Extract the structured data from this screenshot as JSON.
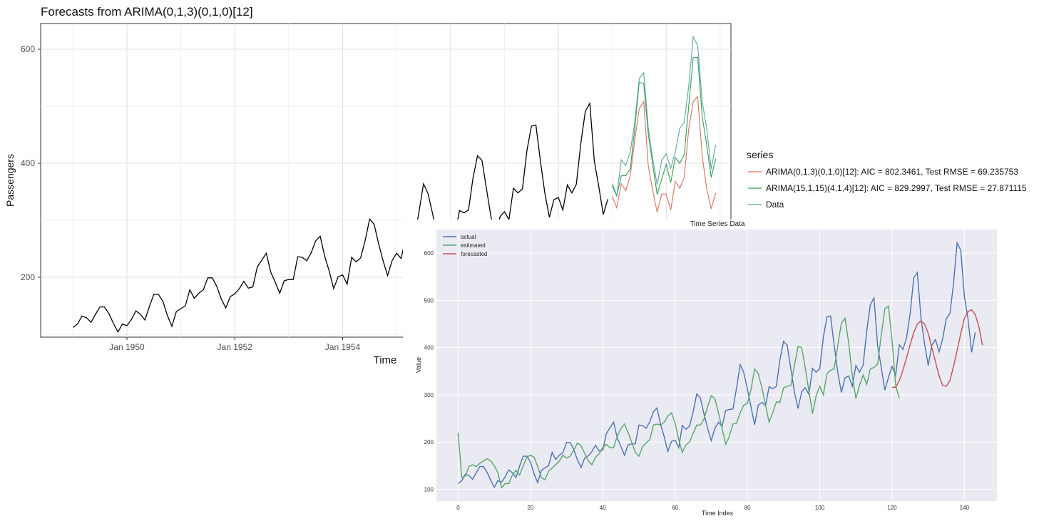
{
  "chart_data": [
    {
      "type": "line",
      "title": "Forecasts from ARIMA(0,1,3)(0,1,0)[12]",
      "xlabel": "Time",
      "ylabel": "Passengers",
      "x_ticks": [
        {
          "label": "Jan 1950",
          "value": 1950.0
        },
        {
          "label": "Jan 1952",
          "value": 1952.0
        },
        {
          "label": "Jan 1954",
          "value": 1954.0
        }
      ],
      "y_ticks": [
        200,
        400,
        600
      ],
      "xlim": [
        1948.4,
        1961.2
      ],
      "ylim": [
        95,
        645
      ],
      "grid": true,
      "legend_position": "right",
      "legend_title": "series",
      "history": {
        "start": 1949.0,
        "step": 0.0833333,
        "values": [
          112,
          118,
          132,
          129,
          121,
          135,
          148,
          148,
          136,
          119,
          104,
          118,
          115,
          126,
          141,
          135,
          125,
          149,
          170,
          170,
          158,
          133,
          114,
          140,
          145,
          150,
          178,
          163,
          172,
          178,
          199,
          199,
          184,
          162,
          146,
          166,
          171,
          180,
          193,
          181,
          183,
          218,
          230,
          242,
          209,
          191,
          172,
          194,
          196,
          196,
          236,
          235,
          229,
          243,
          264,
          272,
          237,
          211,
          180,
          201,
          204,
          188,
          235,
          227,
          234,
          264,
          302,
          293,
          259,
          229,
          203,
          229,
          242,
          233,
          267,
          269,
          270,
          315,
          364,
          347,
          312,
          274,
          237,
          278,
          284,
          277,
          317,
          313,
          318,
          374,
          413,
          405,
          355,
          306,
          271,
          306,
          315,
          301,
          356,
          348,
          355,
          422,
          465,
          467,
          404,
          347,
          305,
          336,
          340,
          318,
          362,
          348,
          363,
          435,
          491,
          505,
          404,
          359,
          310,
          337
        ]
      },
      "series": [
        {
          "name": "ARIMA(0,1,3)(0,1,0)[12]: AIC = 802.3461, Test RMSE = 69.235753",
          "color": "#d9705f",
          "start": 1959.0,
          "step": 0.0833333,
          "values": [
            342,
            322,
            364,
            352,
            378,
            440,
            496,
            508,
            396,
            352,
            314,
            346,
            346,
            318,
            368,
            356,
            375,
            460,
            508,
            517,
            413,
            355,
            320,
            348
          ]
        },
        {
          "name": "ARIMA(15,1,15)(4,1,4)[12]: AIC = 829.2997, Test RMSE = 27.871115",
          "color": "#2e9e50",
          "start": 1959.0,
          "step": 0.0833333,
          "values": [
            364,
            343,
            378,
            378,
            390,
            460,
            542,
            540,
            452,
            398,
            345,
            372,
            398,
            366,
            410,
            400,
            415,
            500,
            585,
            586,
            482,
            432,
            375,
            408
          ]
        },
        {
          "name": "Data",
          "color": "#5ea4a6",
          "start": 1959.0,
          "step": 0.0833333,
          "values": [
            360,
            342,
            406,
            396,
            420,
            472,
            548,
            559,
            463,
            407,
            362,
            405,
            417,
            391,
            419,
            461,
            472,
            535,
            622,
            606,
            508,
            461,
            390,
            432
          ]
        }
      ]
    },
    {
      "type": "line",
      "title": "Time Series Data",
      "xlabel": "Time Index",
      "ylabel": "Value",
      "x_ticks": [
        0,
        20,
        40,
        60,
        80,
        100,
        120,
        140
      ],
      "y_ticks": [
        100,
        200,
        300,
        400,
        500,
        600
      ],
      "xlim": [
        -6,
        149
      ],
      "ylim": [
        75,
        650
      ],
      "grid": true,
      "legend_position": "top-left",
      "series": [
        {
          "name": "actual",
          "color": "#4c72b0",
          "start": 0,
          "values": [
            112,
            118,
            132,
            129,
            121,
            135,
            148,
            148,
            136,
            119,
            104,
            118,
            115,
            126,
            141,
            135,
            125,
            149,
            170,
            170,
            158,
            133,
            114,
            140,
            145,
            150,
            178,
            163,
            172,
            178,
            199,
            199,
            184,
            162,
            146,
            166,
            171,
            180,
            193,
            181,
            183,
            218,
            230,
            242,
            209,
            191,
            172,
            194,
            196,
            196,
            236,
            235,
            229,
            243,
            264,
            272,
            237,
            211,
            180,
            201,
            204,
            188,
            235,
            227,
            234,
            264,
            302,
            293,
            259,
            229,
            203,
            229,
            242,
            233,
            267,
            269,
            270,
            315,
            364,
            347,
            312,
            274,
            237,
            278,
            284,
            277,
            317,
            313,
            318,
            374,
            413,
            405,
            355,
            306,
            271,
            306,
            315,
            301,
            356,
            348,
            355,
            422,
            465,
            467,
            404,
            347,
            305,
            336,
            340,
            318,
            362,
            348,
            363,
            435,
            491,
            505,
            404,
            359,
            310,
            337,
            360,
            342,
            406,
            396,
            420,
            472,
            548,
            559,
            463,
            407,
            362,
            405,
            417,
            391,
            419,
            461,
            472,
            535,
            622,
            606,
            508,
            461,
            390,
            432
          ]
        },
        {
          "name": "estimated",
          "color": "#55a868",
          "start": 0,
          "values": [
            220,
            125,
            128,
            148,
            152,
            148,
            155,
            160,
            165,
            160,
            150,
            135,
            103,
            112,
            112,
            130,
            140,
            130,
            150,
            168,
            172,
            168,
            148,
            125,
            120,
            138,
            145,
            152,
            160,
            172,
            166,
            170,
            183,
            198,
            192,
            176,
            160,
            152,
            168,
            175,
            188,
            195,
            188,
            188,
            212,
            228,
            238,
            220,
            200,
            178,
            170,
            190,
            198,
            205,
            236,
            238,
            236,
            242,
            255,
            262,
            240,
            205,
            178,
            194,
            200,
            218,
            236,
            236,
            249,
            275,
            298,
            292,
            262,
            228,
            195,
            212,
            238,
            240,
            262,
            278,
            282,
            312,
            355,
            345,
            315,
            278,
            242,
            262,
            285,
            284,
            315,
            318,
            320,
            362,
            402,
            400,
            357,
            308,
            260,
            298,
            318,
            300,
            345,
            352,
            355,
            405,
            452,
            462,
            410,
            340,
            292,
            320,
            342,
            322,
            355,
            358,
            365,
            425,
            482,
            488,
            415,
            320,
            292
          ],
          "note": ""
        },
        {
          "name": "forecasted",
          "color": "#c44e52",
          "start": 120,
          "values": [
            316,
            316,
            330,
            352,
            378,
            406,
            432,
            450,
            456,
            450,
            430,
            400,
            370,
            340,
            320,
            318,
            330,
            360,
            394,
            430,
            462,
            476,
            480,
            470,
            445,
            405
          ]
        }
      ]
    }
  ]
}
